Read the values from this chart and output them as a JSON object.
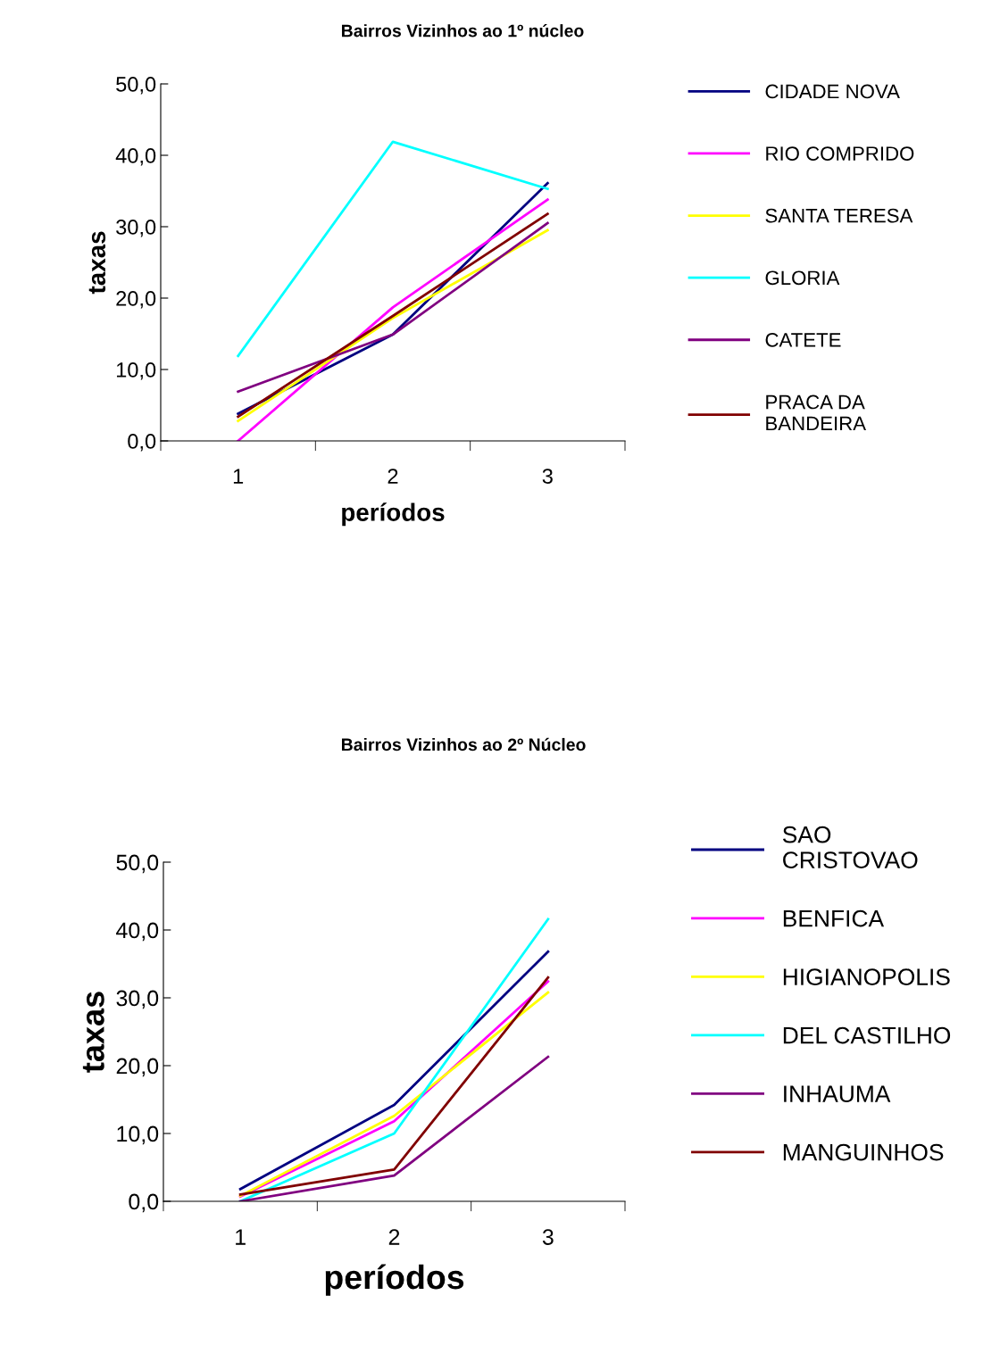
{
  "chart_data": [
    {
      "type": "line",
      "title": "Bairros Vizinhos ao 1º núcleo",
      "xlabel": "períodos",
      "ylabel": "taxas",
      "categories": [
        "1",
        "2",
        "3"
      ],
      "ylim": [
        0,
        50
      ],
      "yticks": [
        {
          "value": 0,
          "label": "0,0"
        },
        {
          "value": 10,
          "label": "10,0"
        },
        {
          "value": 20,
          "label": "20,0"
        },
        {
          "value": 30,
          "label": "30,0"
        },
        {
          "value": 40,
          "label": "40,0"
        },
        {
          "value": 50,
          "label": "50,0"
        }
      ],
      "grid": false,
      "legend": "right",
      "marker": "none",
      "line_style": "solid",
      "series": [
        {
          "name": "CIDADE NOVA",
          "color": "#000080",
          "values": [
            3.8,
            14.9,
            36.1
          ]
        },
        {
          "name": "RIO COMPRIDO",
          "color": "#ff00ff",
          "values": [
            0.0,
            18.7,
            33.8
          ]
        },
        {
          "name": "SANTA TERESA",
          "color": "#ffff00",
          "values": [
            2.8,
            17.2,
            29.5
          ]
        },
        {
          "name": "GLORIA",
          "color": "#00ffff",
          "values": [
            11.9,
            41.9,
            35.3
          ]
        },
        {
          "name": "CATETE",
          "color": "#800080",
          "values": [
            6.9,
            14.9,
            30.5
          ]
        },
        {
          "name": "PRACA DA\nBANDEIRA",
          "color": "#800000",
          "values": [
            3.4,
            17.5,
            31.8
          ]
        }
      ]
    },
    {
      "type": "line",
      "title": "Bairros Vizinhos ao 2º Núcleo",
      "xlabel": "períodos",
      "ylabel": "taxas",
      "categories": [
        "1",
        "2",
        "3"
      ],
      "ylim": [
        0,
        50
      ],
      "yticks": [
        {
          "value": 0,
          "label": "0,0"
        },
        {
          "value": 10,
          "label": "10,0"
        },
        {
          "value": 20,
          "label": "20,0"
        },
        {
          "value": 30,
          "label": "30,0"
        },
        {
          "value": 40,
          "label": "40,0"
        },
        {
          "value": 50,
          "label": "50,0"
        }
      ],
      "grid": false,
      "legend": "right",
      "marker": "none",
      "line_style": "solid",
      "series": [
        {
          "name": "SAO\nCRISTOVAO",
          "color": "#000080",
          "values": [
            1.8,
            14.2,
            36.8
          ]
        },
        {
          "name": "BENFICA",
          "color": "#ff00ff",
          "values": [
            0.7,
            11.8,
            32.4
          ]
        },
        {
          "name": "HIGIANOPOLIS",
          "color": "#ffff00",
          "values": [
            0.8,
            12.6,
            30.8
          ]
        },
        {
          "name": "DEL CASTILHO",
          "color": "#00ffff",
          "values": [
            0.0,
            10.0,
            41.6
          ]
        },
        {
          "name": "INHAUMA",
          "color": "#800080",
          "values": [
            0.0,
            3.8,
            21.3
          ]
        },
        {
          "name": "MANGUINHOS",
          "color": "#800000",
          "values": [
            1.0,
            4.7,
            33.0
          ]
        }
      ]
    }
  ]
}
